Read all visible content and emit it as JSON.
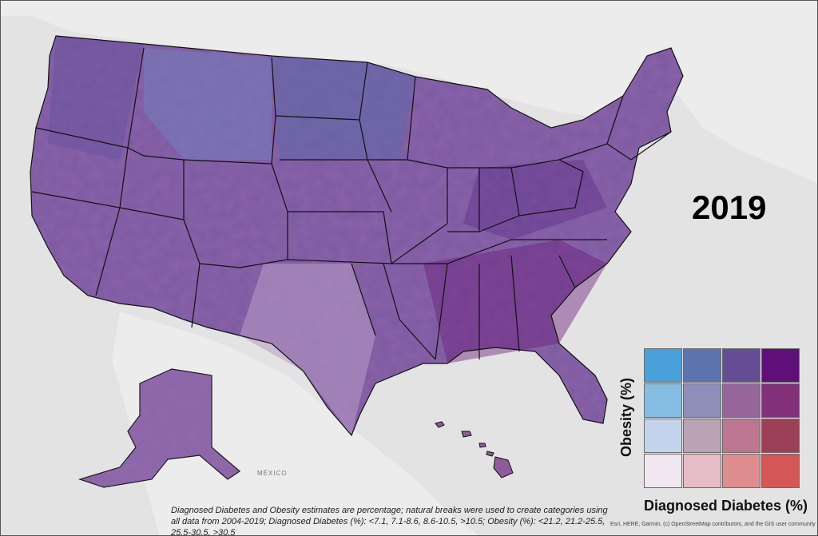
{
  "map": {
    "year": "2019",
    "legend": {
      "y_label": "Obesity (%)",
      "x_label": "Diagnosed Diabetes (%)",
      "grid_colors": [
        [
          "#4aa0d8",
          "#5d73b0",
          "#654d96",
          "#5e0f78"
        ],
        [
          "#86bde3",
          "#8e8eb8",
          "#96669b",
          "#82307a"
        ],
        [
          "#c4d4ec",
          "#bba2b4",
          "#bc7690",
          "#9c4058"
        ],
        [
          "#f2e8f2",
          "#e6bcc6",
          "#de8e8e",
          "#d45656"
        ]
      ]
    },
    "footnote": "Diagnosed Diabetes and Obesity estimates are percentage; natural breaks were used to create categories using all data from 2004-2019; Diagnosed Diabetes (%): <7.1, 7.1-8.6, 8.6-10.5, >10.5; Obesity (%): <21.2, 21.2-25.5, 25.5-30.5, >30.5",
    "attribution": "Esri, HERE, Garmin, (c) OpenStreetMap contributors, and the GIS user community",
    "places": {
      "mexico": "MÉXICO"
    }
  }
}
